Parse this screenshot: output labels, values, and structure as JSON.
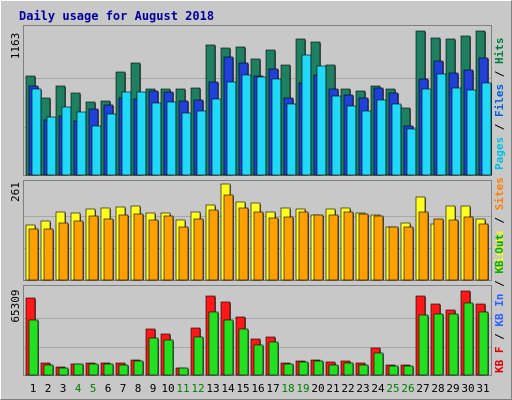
{
  "chart_data": {
    "type": "bar",
    "title": "Daily usage for August 2018",
    "categories": [
      "1",
      "2",
      "3",
      "4",
      "5",
      "6",
      "7",
      "8",
      "9",
      "10",
      "11",
      "12",
      "13",
      "14",
      "15",
      "16",
      "17",
      "18",
      "19",
      "20",
      "21",
      "22",
      "23",
      "24",
      "25",
      "26",
      "27",
      "28",
      "29",
      "30",
      "31"
    ],
    "weekend_days": [
      "4",
      "5",
      "11",
      "12",
      "18",
      "19",
      "25",
      "26"
    ],
    "panels": [
      {
        "name": "requests",
        "axis_max_label": "1163",
        "ylim": [
          0,
          1163
        ],
        "legend": [
          {
            "label": "Pages",
            "color": "#00c0e0"
          },
          {
            "label": "Files",
            "color": "#0060e0"
          },
          {
            "label": "Hits",
            "color": "#008040"
          }
        ],
        "series": [
          {
            "name": "Hits",
            "color": "#1e8060",
            "values": [
              796,
              621,
              715,
              655,
              585,
              597,
              828,
              896,
              692,
              693,
              693,
              697,
              1045,
              1020,
              1023,
              927,
              1002,
              886,
              1092,
              1065,
              882,
              686,
              674,
              717,
              686,
              535,
              1155,
              1099,
              1092,
              1118,
              1155
            ]
          },
          {
            "name": "Files",
            "color": "#2040d8",
            "values": [
              712,
              442,
              473,
              436,
              533,
              563,
              617,
              609,
              676,
              666,
              596,
              602,
              749,
              950,
              899,
              797,
              854,
              615,
              734,
              803,
              688,
              645,
              618,
              694,
              659,
              395,
              768,
              918,
              822,
              842,
              936
            ]
          },
          {
            "name": "Pages",
            "color": "#20d8f8",
            "values": [
              693,
              464,
              544,
              502,
              396,
              492,
              662,
              663,
              575,
              588,
              501,
              516,
              606,
              743,
              801,
              790,
              773,
              571,
              966,
              871,
              634,
              552,
              517,
              601,
              572,
              366,
              686,
              814,
              695,
              678,
              740
            ]
          }
        ]
      },
      {
        "name": "sites",
        "axis_max_label": "261",
        "ylim": [
          0,
          261
        ],
        "legend": [
          {
            "label": "Visits",
            "color": "#ffff00"
          },
          {
            "label": "Sites",
            "color": "#ff8000"
          }
        ],
        "series": [
          {
            "name": "Visits",
            "color": "#ffff20",
            "values": [
              149,
              160,
              184,
              183,
              194,
              196,
              199,
              200,
              181,
              181,
              164,
              186,
              204,
              261,
              212,
              209,
              185,
              195,
              193,
              177,
              194,
              197,
              181,
              178,
              145,
              154,
              225,
              153,
              202,
              202,
              165
            ]
          },
          {
            "name": "Sites",
            "color": "#ffa000",
            "values": [
              140,
              138,
              156,
              161,
              174,
              166,
              177,
              179,
              164,
              174,
              145,
              165,
              190,
              230,
              196,
              185,
              168,
              172,
              186,
              178,
              176,
              186,
              179,
              174,
              144,
              144,
              186,
              167,
              162,
              170,
              152
            ]
          }
        ]
      },
      {
        "name": "traffic",
        "axis_max_label": "65309",
        "ylim": [
          0,
          65309
        ],
        "legend": [
          {
            "label": "KB F",
            "color": "#e00000"
          },
          {
            "label": "KB In",
            "color": "#3060ff"
          },
          {
            "label": "KB Out",
            "color": "#00b000"
          }
        ],
        "series": [
          {
            "name": "KB F",
            "color": "#ff1818",
            "values": [
              59000,
              9200,
              5800,
              8800,
              9600,
              9200,
              9000,
              11600,
              35600,
              31200,
              5600,
              36000,
              60600,
              56000,
              44800,
              27500,
              29100,
              9200,
              10400,
              11300,
              9700,
              11000,
              9200,
              21100,
              7600,
              7600,
              60700,
              54500,
              49600,
              64200,
              54500
            ]
          },
          {
            "name": "KB Out",
            "color": "#20e020",
            "values": [
              42600,
              8000,
              5600,
              8400,
              8400,
              8200,
              8000,
              11000,
              28300,
              26600,
              5600,
              29400,
              48200,
              42200,
              35500,
              22800,
              25300,
              8200,
              9700,
              10900,
              8000,
              9000,
              7400,
              16700,
              6900,
              6900,
              46000,
              46700,
              47100,
              55400,
              48500
            ]
          }
        ]
      }
    ]
  }
}
